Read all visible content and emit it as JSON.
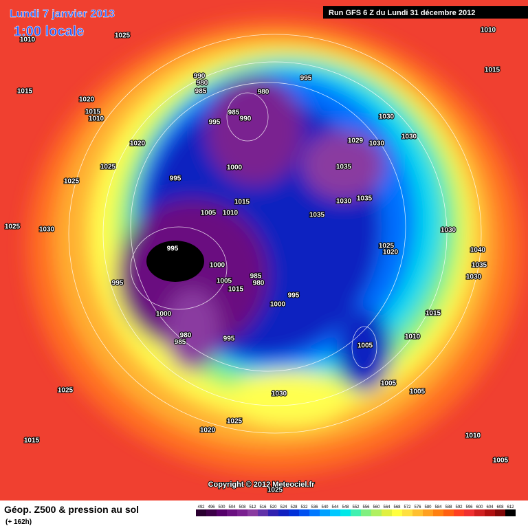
{
  "header": {
    "title": "Lundi 7 janvier 2013",
    "time": "1:00 locale",
    "run": "Run GFS 6 Z du Lundi 31 décembre 2012"
  },
  "footer": {
    "caption": "Géop. Z500 & pression au sol",
    "lead": "(+ 162h)",
    "copyright": "Copyright © 2012 Meteociel.fr"
  },
  "legend": {
    "values": [
      492,
      496,
      500,
      504,
      508,
      512,
      516,
      520,
      524,
      528,
      532,
      536,
      540,
      544,
      548,
      552,
      556,
      560,
      564,
      568,
      572,
      576,
      580,
      584,
      588,
      592,
      596,
      600,
      604,
      608,
      612
    ],
    "colors": [
      "#2a0030",
      "#3d0048",
      "#55006a",
      "#6a1080",
      "#7a2090",
      "#8a3aa0",
      "#6030a8",
      "#3020b0",
      "#1020c0",
      "#0030d8",
      "#0050f0",
      "#0078ff",
      "#00a0ff",
      "#00c8ff",
      "#00e8e8",
      "#40f0b0",
      "#80f080",
      "#b0f060",
      "#e0f040",
      "#ffff40",
      "#ffe040",
      "#ffc030",
      "#ffa020",
      "#ff8010",
      "#ff6010",
      "#ff4020",
      "#f03030",
      "#d02020",
      "#b01010",
      "#800808",
      "#000000"
    ]
  },
  "isobar_labels": [
    "1025",
    "1010",
    "1015",
    "1020",
    "1015",
    "1010",
    "1020",
    "1025",
    "1025",
    "1025",
    "1030",
    "995",
    "990",
    "980",
    "985",
    "995",
    "985",
    "990",
    "980",
    "995",
    "1000",
    "1005",
    "1010",
    "1015",
    "995",
    "995",
    "1000",
    "1005",
    "985",
    "980",
    "1015",
    "1000",
    "995",
    "1000",
    "980",
    "985",
    "995",
    "1030",
    "1030",
    "1029",
    "1030",
    "1035",
    "1030",
    "1035",
    "1035",
    "1030",
    "1025",
    "1020",
    "1040",
    "1035",
    "1030",
    "1015",
    "1010",
    "1005",
    "1005",
    "1005",
    "1030",
    "1025",
    "1025",
    "1020",
    "1015",
    "1010",
    "1005",
    "1010",
    "1015",
    "1025"
  ]
}
